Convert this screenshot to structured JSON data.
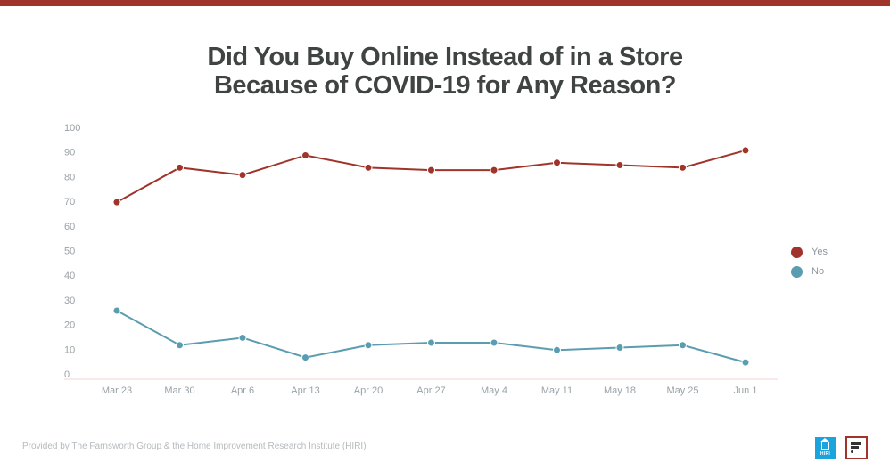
{
  "title": {
    "line1": "Did You Buy Online Instead of in a Store",
    "line2": "Because of COVID-19 for Any Reason?"
  },
  "colors": {
    "top_bar": "#a0332a",
    "yes": "#a0332a",
    "no": "#5b9db0",
    "axis_line": "#f3d6d3",
    "tick_text": "#9aa2a6"
  },
  "legend": {
    "items": [
      {
        "label": "Yes",
        "color": "#a0332a"
      },
      {
        "label": "No",
        "color": "#5b9db0"
      }
    ]
  },
  "footer": {
    "credit": "Provided by The Farnsworth Group & the Home Improvement Research Institute (HIRI)",
    "hiri_logo_text": "HIRI"
  },
  "chart_data": {
    "type": "line",
    "title": "Did You Buy Online Instead of in a Store Because of COVID-19 for Any Reason?",
    "xlabel": "",
    "ylabel": "",
    "categories": [
      "Mar 23",
      "Mar 30",
      "Apr 6",
      "Apr 13",
      "Apr 20",
      "Apr 27",
      "May 4",
      "May 11",
      "May 18",
      "May 25",
      "Jun 1"
    ],
    "yticks": [
      0,
      10,
      20,
      30,
      40,
      50,
      60,
      70,
      80,
      90,
      100
    ],
    "ylim": [
      0,
      100
    ],
    "grid": false,
    "legend_position": "right",
    "series": [
      {
        "name": "Yes",
        "color": "#a0332a",
        "values": [
          70,
          84,
          81,
          89,
          84,
          83,
          83,
          86,
          85,
          84,
          91
        ]
      },
      {
        "name": "No",
        "color": "#5b9db0",
        "values": [
          26,
          12,
          15,
          7,
          12,
          13,
          13,
          10,
          11,
          12,
          5
        ]
      }
    ]
  }
}
